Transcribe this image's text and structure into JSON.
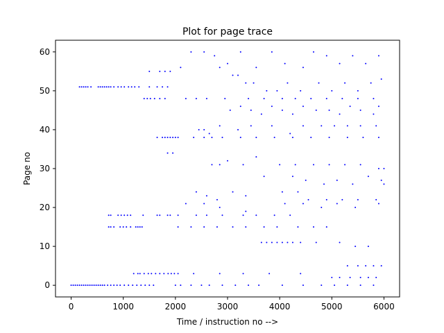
{
  "chart_data": {
    "type": "scatter",
    "title": "Plot for page trace",
    "xlabel": "Time / instruction no -->",
    "ylabel": "Page no",
    "xlim": [
      -300,
      6300
    ],
    "ylim": [
      -3,
      63
    ],
    "xticks": [
      0,
      1000,
      2000,
      3000,
      4000,
      5000,
      6000
    ],
    "yticks": [
      0,
      10,
      20,
      30,
      40,
      50,
      60
    ],
    "grid": false,
    "marker_color": "#0000ff",
    "series": [
      {
        "points": [
          [
            0,
            0
          ],
          [
            40,
            0
          ],
          [
            80,
            0
          ],
          [
            120,
            0
          ],
          [
            160,
            0
          ],
          [
            200,
            0
          ],
          [
            240,
            0
          ],
          [
            280,
            0
          ],
          [
            320,
            0
          ],
          [
            360,
            0
          ],
          [
            400,
            0
          ],
          [
            440,
            0
          ],
          [
            480,
            0
          ],
          [
            520,
            0
          ],
          [
            560,
            0
          ],
          [
            600,
            0
          ],
          [
            640,
            0
          ],
          [
            700,
            0
          ],
          [
            760,
            0
          ],
          [
            820,
            0
          ],
          [
            880,
            0
          ],
          [
            940,
            0
          ],
          [
            1020,
            0
          ],
          [
            1100,
            0
          ],
          [
            1180,
            0
          ],
          [
            1260,
            0
          ],
          [
            1340,
            0
          ],
          [
            1420,
            0
          ],
          [
            1500,
            0
          ],
          [
            1580,
            0
          ],
          [
            2000,
            0
          ],
          [
            2100,
            0
          ],
          [
            2300,
            0
          ],
          [
            2500,
            0
          ],
          [
            2650,
            0
          ],
          [
            2900,
            0
          ],
          [
            3150,
            0
          ],
          [
            3400,
            0
          ],
          [
            3600,
            0
          ],
          [
            4050,
            0
          ],
          [
            4450,
            0
          ],
          [
            4800,
            0
          ],
          [
            5050,
            0
          ],
          [
            5300,
            0
          ],
          [
            5550,
            0
          ],
          [
            5800,
            0
          ],
          [
            160,
            51
          ],
          [
            200,
            51
          ],
          [
            240,
            51
          ],
          [
            280,
            51
          ],
          [
            320,
            51
          ],
          [
            380,
            51
          ],
          [
            520,
            51
          ],
          [
            560,
            51
          ],
          [
            600,
            51
          ],
          [
            640,
            51
          ],
          [
            680,
            51
          ],
          [
            720,
            51
          ],
          [
            760,
            51
          ],
          [
            820,
            51
          ],
          [
            900,
            51
          ],
          [
            960,
            51
          ],
          [
            1020,
            51
          ],
          [
            1100,
            51
          ],
          [
            1160,
            51
          ],
          [
            1220,
            51
          ],
          [
            1300,
            51
          ],
          [
            1500,
            51
          ],
          [
            1650,
            51
          ],
          [
            1750,
            51
          ],
          [
            1850,
            51
          ],
          [
            1400,
            48
          ],
          [
            1460,
            48
          ],
          [
            1520,
            48
          ],
          [
            1600,
            48
          ],
          [
            1700,
            48
          ],
          [
            1800,
            48
          ],
          [
            2200,
            48
          ],
          [
            2400,
            48
          ],
          [
            2600,
            48
          ],
          [
            2950,
            48
          ],
          [
            3400,
            48
          ],
          [
            3700,
            48
          ],
          [
            4050,
            48
          ],
          [
            4300,
            48
          ],
          [
            4600,
            48
          ],
          [
            4900,
            48
          ],
          [
            5200,
            48
          ],
          [
            5500,
            48
          ],
          [
            5800,
            48
          ],
          [
            720,
            18
          ],
          [
            760,
            18
          ],
          [
            900,
            18
          ],
          [
            960,
            18
          ],
          [
            1020,
            18
          ],
          [
            1080,
            18
          ],
          [
            1140,
            18
          ],
          [
            1380,
            18
          ],
          [
            1650,
            18
          ],
          [
            1700,
            18
          ],
          [
            1850,
            18
          ],
          [
            1900,
            18
          ],
          [
            2050,
            18
          ],
          [
            2400,
            18
          ],
          [
            2600,
            18
          ],
          [
            2900,
            18
          ],
          [
            3300,
            18
          ],
          [
            3550,
            18
          ],
          [
            3900,
            18
          ],
          [
            4200,
            18
          ],
          [
            720,
            15
          ],
          [
            760,
            15
          ],
          [
            820,
            15
          ],
          [
            940,
            15
          ],
          [
            1000,
            15
          ],
          [
            1060,
            15
          ],
          [
            1140,
            15
          ],
          [
            1240,
            15
          ],
          [
            1280,
            15
          ],
          [
            1320,
            15
          ],
          [
            1360,
            15
          ],
          [
            2050,
            15
          ],
          [
            2300,
            15
          ],
          [
            2550,
            15
          ],
          [
            2800,
            15
          ],
          [
            3100,
            15
          ],
          [
            3350,
            15
          ],
          [
            3700,
            15
          ],
          [
            3950,
            15
          ],
          [
            4350,
            15
          ],
          [
            4650,
            15
          ],
          [
            4900,
            15
          ],
          [
            1200,
            3
          ],
          [
            1280,
            3
          ],
          [
            1320,
            3
          ],
          [
            1400,
            3
          ],
          [
            1480,
            3
          ],
          [
            1540,
            3
          ],
          [
            1620,
            3
          ],
          [
            1700,
            3
          ],
          [
            1780,
            3
          ],
          [
            1860,
            3
          ],
          [
            1920,
            3
          ],
          [
            1980,
            3
          ],
          [
            2050,
            3
          ],
          [
            2350,
            3
          ],
          [
            2850,
            3
          ],
          [
            3300,
            3
          ],
          [
            3800,
            3
          ],
          [
            4400,
            3
          ],
          [
            1650,
            38
          ],
          [
            1750,
            38
          ],
          [
            1800,
            38
          ],
          [
            1850,
            38
          ],
          [
            1900,
            38
          ],
          [
            1950,
            38
          ],
          [
            2000,
            38
          ],
          [
            2050,
            38
          ],
          [
            2350,
            38
          ],
          [
            2550,
            38
          ],
          [
            2700,
            38
          ],
          [
            2900,
            38
          ],
          [
            3250,
            38
          ],
          [
            3550,
            38
          ],
          [
            3900,
            38
          ],
          [
            4250,
            38
          ],
          [
            4600,
            38
          ],
          [
            4950,
            38
          ],
          [
            5300,
            38
          ],
          [
            5600,
            38
          ],
          [
            5900,
            38
          ],
          [
            1850,
            34
          ],
          [
            1950,
            34
          ],
          [
            1500,
            55
          ],
          [
            1700,
            55
          ],
          [
            1800,
            55
          ],
          [
            1900,
            55
          ],
          [
            2100,
            56
          ],
          [
            2300,
            60
          ],
          [
            2550,
            60
          ],
          [
            2750,
            59
          ],
          [
            2850,
            56
          ],
          [
            3000,
            57
          ],
          [
            3250,
            60
          ],
          [
            3550,
            56
          ],
          [
            3850,
            60
          ],
          [
            4100,
            57
          ],
          [
            4450,
            56
          ],
          [
            4650,
            60
          ],
          [
            4900,
            59
          ],
          [
            5150,
            57
          ],
          [
            5400,
            59
          ],
          [
            5650,
            57
          ],
          [
            5900,
            59
          ],
          [
            3100,
            54
          ],
          [
            3200,
            54
          ],
          [
            3350,
            52
          ],
          [
            3500,
            52
          ],
          [
            3750,
            50
          ],
          [
            3950,
            50
          ],
          [
            4150,
            52
          ],
          [
            4400,
            50
          ],
          [
            4750,
            52
          ],
          [
            5000,
            50
          ],
          [
            5250,
            52
          ],
          [
            5500,
            50
          ],
          [
            5750,
            52
          ],
          [
            5950,
            53
          ],
          [
            3050,
            45
          ],
          [
            3250,
            46
          ],
          [
            3450,
            45
          ],
          [
            3650,
            44
          ],
          [
            3850,
            46
          ],
          [
            4050,
            45
          ],
          [
            4250,
            44
          ],
          [
            4450,
            46
          ],
          [
            4700,
            45
          ],
          [
            4950,
            45
          ],
          [
            5150,
            44
          ],
          [
            5350,
            46
          ],
          [
            5550,
            45
          ],
          [
            5800,
            44
          ],
          [
            5900,
            46
          ],
          [
            2450,
            40
          ],
          [
            2550,
            40
          ],
          [
            2650,
            39
          ],
          [
            2850,
            41
          ],
          [
            3200,
            40
          ],
          [
            3450,
            41
          ],
          [
            3850,
            41
          ],
          [
            4200,
            39
          ],
          [
            4450,
            41
          ],
          [
            4800,
            41
          ],
          [
            5050,
            41
          ],
          [
            5300,
            41
          ],
          [
            5550,
            41
          ],
          [
            5850,
            41
          ],
          [
            2700,
            31
          ],
          [
            2850,
            31
          ],
          [
            3000,
            32
          ],
          [
            3300,
            31
          ],
          [
            3550,
            33
          ],
          [
            4000,
            31
          ],
          [
            4300,
            31
          ],
          [
            4650,
            31
          ],
          [
            4950,
            31
          ],
          [
            5250,
            31
          ],
          [
            5550,
            31
          ],
          [
            5900,
            30
          ],
          [
            6000,
            30
          ],
          [
            3700,
            28
          ],
          [
            4250,
            28
          ],
          [
            4500,
            27
          ],
          [
            4850,
            26
          ],
          [
            5100,
            27
          ],
          [
            5400,
            26
          ],
          [
            5700,
            28
          ],
          [
            5950,
            27
          ],
          [
            6000,
            26
          ],
          [
            2400,
            24
          ],
          [
            2600,
            23
          ],
          [
            2800,
            22
          ],
          [
            3100,
            24
          ],
          [
            3350,
            23
          ],
          [
            4050,
            24
          ],
          [
            4350,
            24
          ],
          [
            4550,
            22
          ],
          [
            4900,
            22
          ],
          [
            5200,
            22
          ],
          [
            5500,
            22
          ],
          [
            5850,
            22
          ],
          [
            2200,
            21
          ],
          [
            2550,
            21
          ],
          [
            2850,
            20
          ],
          [
            3350,
            19
          ],
          [
            4100,
            21
          ],
          [
            4450,
            21
          ],
          [
            4800,
            20
          ],
          [
            5100,
            21
          ],
          [
            5450,
            20
          ],
          [
            5900,
            21
          ],
          [
            3650,
            11
          ],
          [
            3750,
            11
          ],
          [
            3850,
            11
          ],
          [
            3950,
            11
          ],
          [
            4050,
            11
          ],
          [
            4150,
            11
          ],
          [
            4250,
            11
          ],
          [
            4400,
            11
          ],
          [
            4700,
            11
          ],
          [
            5150,
            11
          ],
          [
            5450,
            10
          ],
          [
            5700,
            10
          ],
          [
            5300,
            5
          ],
          [
            5500,
            5
          ],
          [
            5650,
            5
          ],
          [
            5800,
            5
          ],
          [
            5950,
            5
          ],
          [
            5000,
            2
          ],
          [
            5150,
            2
          ],
          [
            5350,
            2
          ],
          [
            5550,
            2
          ],
          [
            5700,
            2
          ],
          [
            5850,
            2
          ]
        ]
      }
    ]
  }
}
